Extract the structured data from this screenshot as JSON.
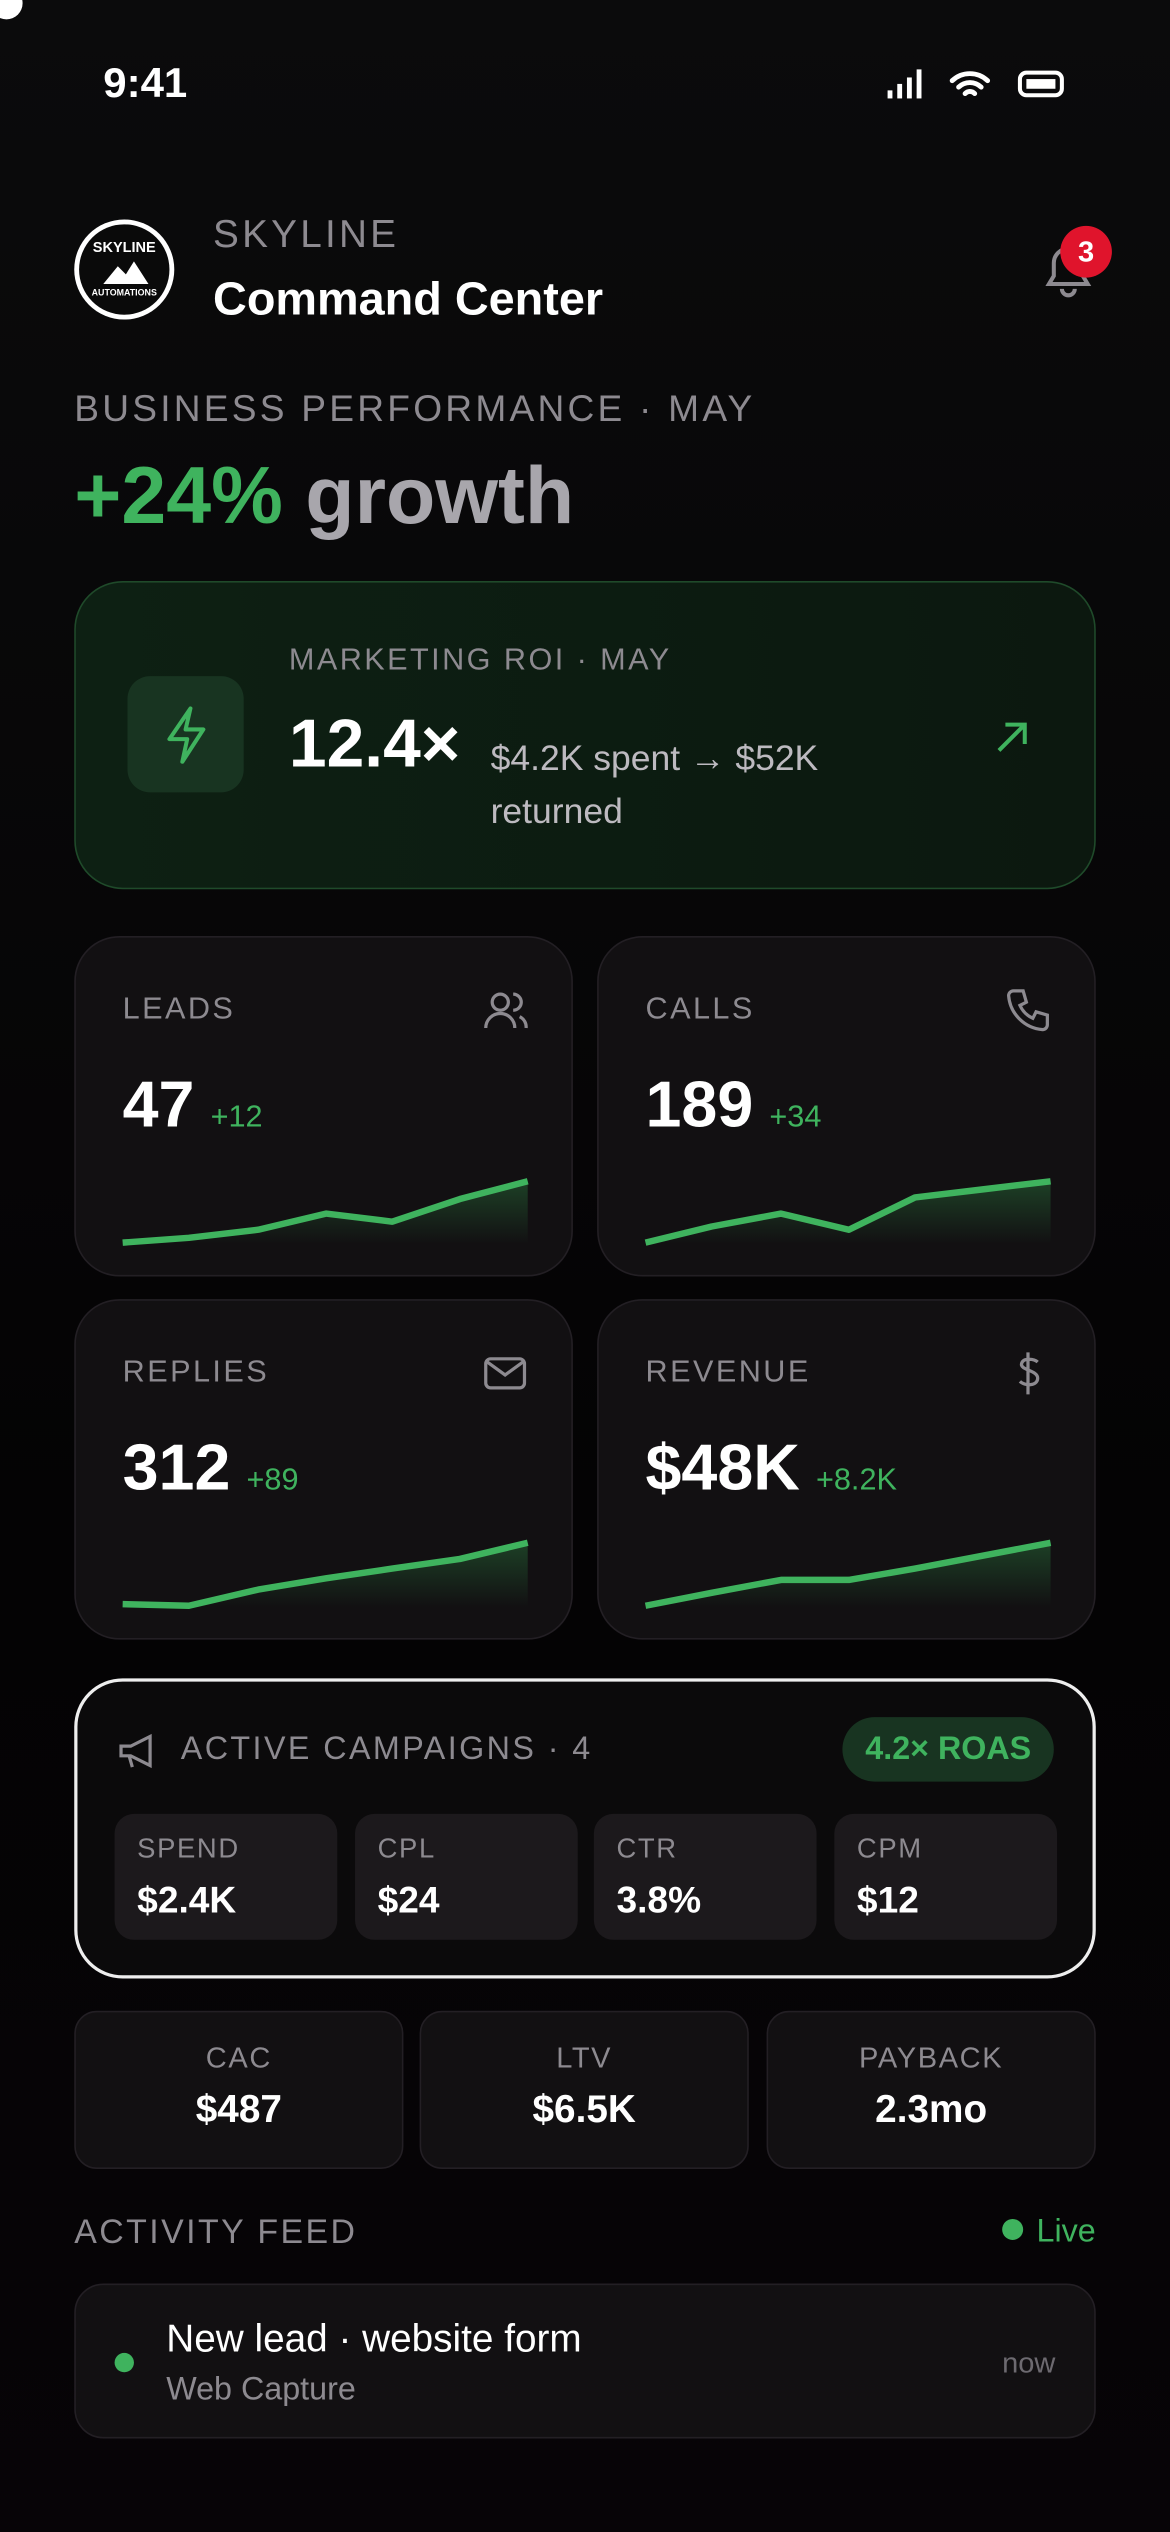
{
  "status": {
    "time": "9:41"
  },
  "header": {
    "logo_top": "SKYLINE",
    "logo_bottom": "AUTOMATIONS",
    "brand": "SKYLINE",
    "title": "Command Center",
    "notifications": "3"
  },
  "performance": {
    "label": "BUSINESS PERFORMANCE · MAY",
    "growth": "+24%",
    "growth_word": "growth"
  },
  "roi": {
    "label": "MARKETING ROI · MAY",
    "value": "12.4×",
    "detail": "$4.2K spent → $52K returned"
  },
  "metrics": [
    {
      "label": "LEADS",
      "value": "47",
      "delta": "+12"
    },
    {
      "label": "CALLS",
      "value": "189",
      "delta": "+34"
    },
    {
      "label": "REPLIES",
      "value": "312",
      "delta": "+89"
    },
    {
      "label": "REVENUE",
      "value": "$48K",
      "delta": "+8.2K"
    }
  ],
  "campaigns": {
    "title": "ACTIVE CAMPAIGNS · 4",
    "badge": "4.2× ROAS",
    "stats": [
      {
        "label": "SPEND",
        "value": "$2.4K"
      },
      {
        "label": "CPL",
        "value": "$24"
      },
      {
        "label": "CTR",
        "value": "3.8%"
      },
      {
        "label": "CPM",
        "value": "$12"
      }
    ]
  },
  "unit_economics": [
    {
      "label": "CAC",
      "value": "$487"
    },
    {
      "label": "LTV",
      "value": "$6.5K"
    },
    {
      "label": "PAYBACK",
      "value": "2.3mo"
    }
  ],
  "activity": {
    "title": "ACTIVITY FEED",
    "status": "Live",
    "items": [
      {
        "title": "New lead · website form",
        "source": "Web Capture",
        "time": "now"
      }
    ]
  }
}
